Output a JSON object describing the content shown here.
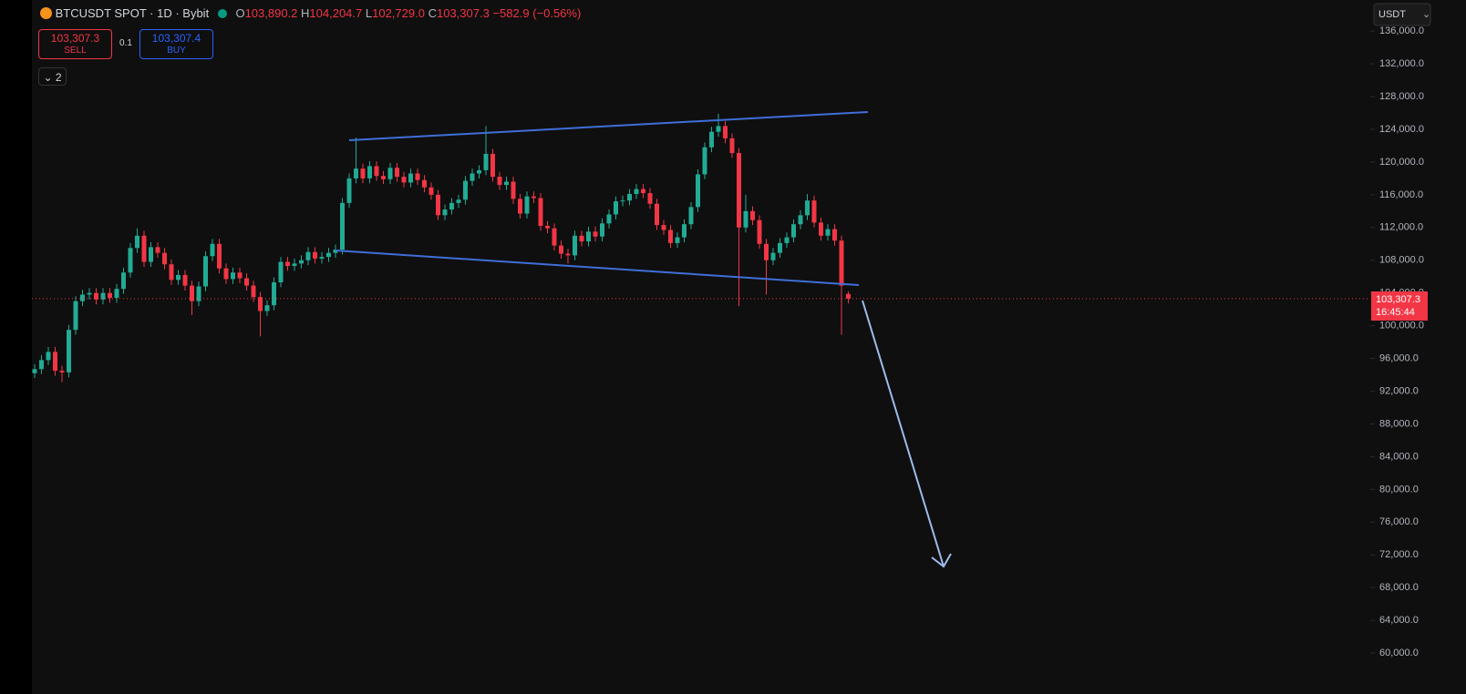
{
  "header": {
    "symbol": "BTCUSDT SPOT · 1D · Bybit",
    "open_key": "O",
    "open": "103,890.2",
    "high_key": "H",
    "high": "104,204.7",
    "low_key": "L",
    "low": "102,729.0",
    "close_key": "C",
    "close": "103,307.3",
    "change": "−582.9 (−0.56%)"
  },
  "order_panel": {
    "sell_price": "103,307.3",
    "sell": "SELL",
    "quantity": "0.1",
    "buy_price": "103,307.4",
    "buy": "BUY",
    "indicators": "2"
  },
  "currency": "USDT",
  "chart_data": {
    "type": "candlestick",
    "up_color": "#22ab94",
    "down_color": "#f23645",
    "ylim": [
      55000,
      139800
    ],
    "yticks": [
      {
        "value": 60000,
        "label": "60,000.0"
      },
      {
        "value": 64000,
        "label": "64,000.0"
      },
      {
        "value": 68000,
        "label": "68,000.0"
      },
      {
        "value": 72000,
        "label": "72,000.0"
      },
      {
        "value": 76000,
        "label": "76,000.0"
      },
      {
        "value": 80000,
        "label": "80,000.0"
      },
      {
        "value": 84000,
        "label": "84,000.0"
      },
      {
        "value": 88000,
        "label": "88,000.0"
      },
      {
        "value": 92000,
        "label": "92,000.0"
      },
      {
        "value": 96000,
        "label": "96,000.0"
      },
      {
        "value": 100000,
        "label": "100,000.0"
      },
      {
        "value": 104000,
        "label": "104,000.0"
      },
      {
        "value": 108000,
        "label": "108,000.0"
      },
      {
        "value": 112000,
        "label": "112,000.0"
      },
      {
        "value": 116000,
        "label": "116,000.0"
      },
      {
        "value": 120000,
        "label": "120,000.0"
      },
      {
        "value": 124000,
        "label": "124,000.0"
      },
      {
        "value": 128000,
        "label": "128,000.0"
      },
      {
        "value": 132000,
        "label": "132,000.0"
      },
      {
        "value": 136000,
        "label": "136,000.0"
      }
    ],
    "open": [
      94200,
      94700,
      95800,
      96800,
      94500,
      94300,
      99500,
      103000,
      103800,
      104000,
      103200,
      104000,
      103400,
      104500,
      106500,
      109500,
      111000,
      107800,
      109600,
      108900,
      107500,
      105600,
      106200,
      104900,
      103000,
      104800,
      108500,
      110000,
      107000,
      105700,
      106500,
      105800,
      104900,
      103500,
      101800,
      102500,
      105300,
      107800,
      107300,
      107600,
      108000,
      109000,
      108200,
      108400,
      108900,
      109300,
      115000,
      118000,
      119200,
      118000,
      119500,
      118300,
      117900,
      119300,
      118200,
      117500,
      118600,
      117800,
      116900,
      116000,
      113500,
      114200,
      115000,
      115400,
      117700,
      118600,
      119000,
      121000,
      118200,
      117200,
      117600,
      115500,
      113700,
      115800,
      115600,
      112200,
      111900,
      109800,
      108800,
      108600,
      111000,
      110300,
      111500,
      110900,
      112500,
      113600,
      115200,
      115300,
      116100,
      116700,
      116200,
      114900,
      112300,
      111700,
      110100,
      110800,
      112400,
      114500,
      118500,
      121800,
      123700,
      124400,
      122900,
      121100,
      112000,
      114000,
      112900,
      110000,
      108000,
      108900,
      110100,
      110800,
      112400,
      113500,
      115300,
      112600,
      111000,
      111800,
      110400,
      103890.2
    ],
    "high": [
      95300,
      96400,
      97400,
      97400,
      95100,
      100100,
      103600,
      104400,
      104600,
      104600,
      104600,
      104600,
      105100,
      107100,
      110100,
      111900,
      111600,
      110200,
      110200,
      109500,
      108100,
      106800,
      106800,
      105500,
      105400,
      109100,
      110600,
      110600,
      107600,
      107100,
      107100,
      106400,
      105500,
      104100,
      103100,
      105900,
      108400,
      108400,
      108200,
      108600,
      109600,
      109600,
      109000,
      109500,
      109900,
      115600,
      118600,
      123000,
      119800,
      120100,
      120100,
      118900,
      119900,
      119900,
      118800,
      119200,
      119200,
      118400,
      117500,
      116600,
      114800,
      115600,
      116000,
      118300,
      119200,
      119600,
      124400,
      121600,
      118800,
      118200,
      118200,
      116100,
      116400,
      116400,
      116200,
      112800,
      112500,
      110400,
      109400,
      111600,
      111600,
      112100,
      112100,
      113100,
      114200,
      115800,
      115900,
      116700,
      117300,
      117300,
      116800,
      115500,
      112900,
      112300,
      111400,
      113000,
      115100,
      119100,
      122400,
      124300,
      125900,
      125000,
      123500,
      121700,
      116000,
      114600,
      113500,
      110600,
      109500,
      110700,
      111400,
      113000,
      114100,
      116100,
      115900,
      113200,
      112400,
      112400,
      111000,
      104204.7
    ],
    "low": [
      93600,
      94100,
      95200,
      93900,
      93100,
      93700,
      98900,
      102400,
      103200,
      102600,
      102600,
      102800,
      102800,
      103900,
      105900,
      108900,
      107200,
      107200,
      108300,
      106900,
      105000,
      105000,
      104300,
      101300,
      102400,
      104200,
      107900,
      106400,
      105100,
      105100,
      105200,
      104300,
      102900,
      98700,
      101200,
      101900,
      104700,
      106700,
      106700,
      107000,
      107400,
      107600,
      107600,
      107800,
      108300,
      108700,
      114400,
      117400,
      117400,
      117400,
      117700,
      117300,
      117300,
      117600,
      116900,
      116900,
      117200,
      116300,
      115400,
      112900,
      112900,
      113600,
      114400,
      114800,
      117100,
      118000,
      118400,
      117600,
      116600,
      116600,
      114900,
      113100,
      113100,
      115000,
      111600,
      111300,
      109200,
      108200,
      107600,
      108000,
      109700,
      109700,
      110300,
      110300,
      111900,
      113000,
      114600,
      114700,
      115500,
      115600,
      114300,
      111700,
      111100,
      109500,
      109500,
      110200,
      111800,
      113900,
      117900,
      121200,
      123100,
      122300,
      120500,
      102400,
      111400,
      112300,
      109400,
      103800,
      107400,
      108300,
      109500,
      110200,
      111800,
      112900,
      112000,
      110400,
      110400,
      109800,
      98900,
      102729.0
    ],
    "close": [
      94700,
      95800,
      96800,
      94500,
      94300,
      99500,
      103000,
      103800,
      104000,
      103200,
      104000,
      103400,
      104500,
      106500,
      109500,
      111000,
      107800,
      109600,
      108900,
      107500,
      105600,
      106200,
      104900,
      103000,
      104800,
      108500,
      110000,
      107000,
      105700,
      106500,
      105800,
      104900,
      103500,
      101800,
      102500,
      105300,
      107800,
      107300,
      107600,
      108000,
      109000,
      108200,
      108400,
      108900,
      109300,
      115000,
      118000,
      119200,
      118000,
      119500,
      118300,
      117900,
      119300,
      118200,
      117500,
      118600,
      117800,
      116900,
      116000,
      113500,
      114200,
      115000,
      115400,
      117700,
      118600,
      119000,
      121000,
      118200,
      117200,
      117600,
      115500,
      113700,
      115800,
      115600,
      112200,
      111900,
      109800,
      108800,
      108600,
      111000,
      110300,
      111500,
      110900,
      112500,
      113600,
      115200,
      115300,
      116100,
      116700,
      116200,
      114900,
      112300,
      111700,
      110100,
      110800,
      112400,
      114500,
      118500,
      121800,
      123700,
      124400,
      122900,
      121100,
      112000,
      114000,
      112900,
      110000,
      108000,
      108900,
      110100,
      110800,
      112400,
      113500,
      115300,
      112600,
      111000,
      111800,
      110400,
      104900,
      103307.3
    ],
    "last_price_label": "103,307.3",
    "countdown": "16:45:44"
  }
}
